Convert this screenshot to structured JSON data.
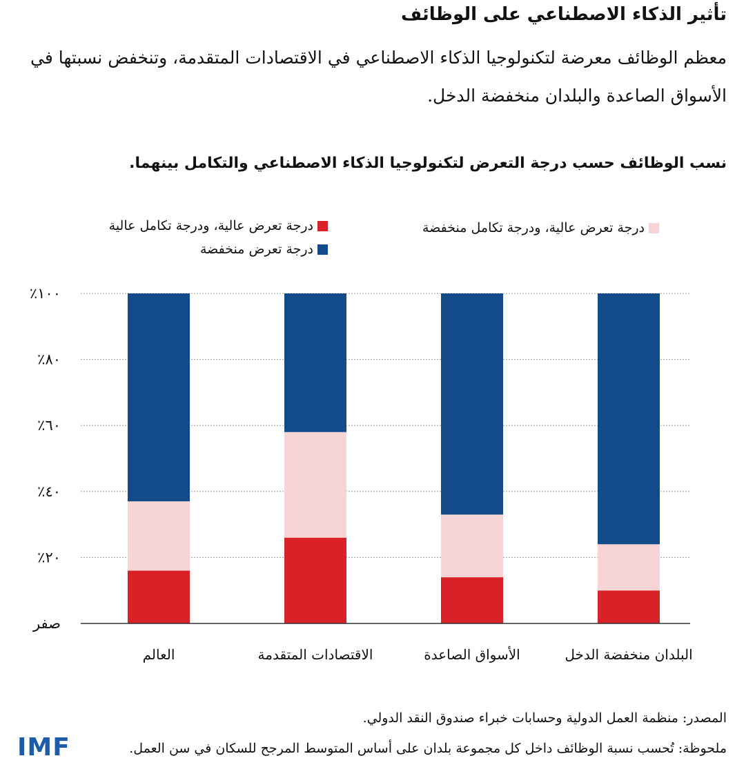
{
  "header": {
    "title": "تأثير الذكاء الاصطناعي على الوظائف",
    "subtitle": "معظم الوظائف معرضة لتكنولوجيا الذكاء الاصطناعي في الاقتصادات المتقدمة، وتنخفض نسبتها في الأسواق الصاعدة والبلدان منخفضة الدخل."
  },
  "colors": {
    "high_low": "#f7d4d5",
    "high_high": "#d92128",
    "low": "#124a8a",
    "axis": "#333333",
    "grid": "#9a9a9a",
    "logo": "#1d5ca8"
  },
  "legend": {
    "high_low": "درجة تعرض عالية، ودرجة تكامل منخفضة",
    "high_high": "درجة تعرض عالية، ودرجة تكامل عالية",
    "low": "درجة تعرض منخفضة"
  },
  "chart_data": {
    "type": "bar",
    "stacked": true,
    "title": "نسب الوظائف حسب درجة التعرض لتكنولوجيا الذكاء الاصطناعي والتكامل بينهما.",
    "categories": [
      "العالم",
      "الاقتصادات المتقدمة",
      "الأسواق الصاعدة",
      "البلدان منخفضة الدخل"
    ],
    "ylim": [
      0,
      100
    ],
    "yticks": [
      0,
      20,
      40,
      60,
      80,
      100
    ],
    "ytick_labels": [
      "صفر",
      "٪٢٠",
      "٪٤٠",
      "٪٦٠",
      "٪٨٠",
      "٪١٠٠"
    ],
    "series": [
      {
        "name": "درجة تعرض عالية، ودرجة تكامل عالية",
        "key": "high_high",
        "values": [
          16,
          26,
          14,
          10
        ]
      },
      {
        "name": "درجة تعرض عالية، ودرجة تكامل منخفضة",
        "key": "high_low",
        "values": [
          21,
          32,
          19,
          14
        ]
      },
      {
        "name": "درجة تعرض منخفضة",
        "key": "low",
        "values": [
          63,
          42,
          67,
          76
        ]
      }
    ]
  },
  "footer": {
    "source": "المصدر: منظمة العمل الدولية وحسابات خبراء صندوق النقد الدولي.",
    "note": "ملحوظة: تُحسب نسبة الوظائف داخل كل مجموعة بلدان على أساس المتوسط المرجح للسكان في سن العمل."
  },
  "logo": {
    "text": "IMF"
  }
}
